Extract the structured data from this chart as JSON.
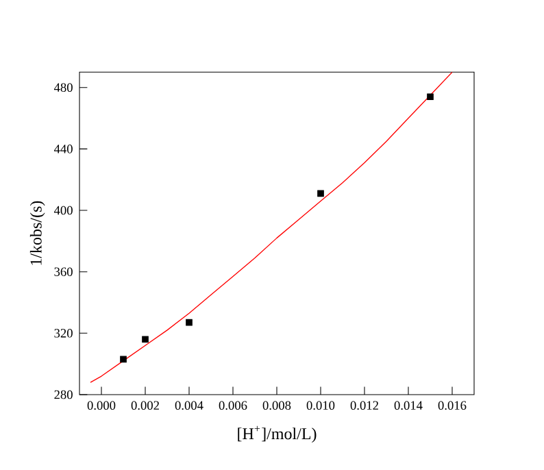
{
  "chart_data": {
    "type": "scatter",
    "xlabel": "[H$^{+}$]/mol/L)",
    "ylabel": "1/kobs/(s)",
    "xlim": [
      -0.001,
      0.017
    ],
    "ylim": [
      280,
      490
    ],
    "xticks": [
      {
        "value": 0,
        "label": "0.000"
      },
      {
        "value": 0.002,
        "label": "0.002"
      },
      {
        "value": 0.004,
        "label": "0.004"
      },
      {
        "value": 0.006,
        "label": "0.006"
      },
      {
        "value": 0.008,
        "label": "0.008"
      },
      {
        "value": 0.01,
        "label": "0.010"
      },
      {
        "value": 0.012,
        "label": "0.012"
      },
      {
        "value": 0.014,
        "label": "0.014"
      },
      {
        "value": 0.016,
        "label": "0.016"
      }
    ],
    "yticks": [
      280,
      320,
      360,
      400,
      440,
      480
    ],
    "grid": false,
    "series": [
      {
        "color": "#000000",
        "marker": "square",
        "x": [
          0.001,
          0.002,
          0.004,
          0.01,
          0.015
        ],
        "values": [
          303,
          316,
          327,
          411,
          474
        ]
      },
      {
        "type": "line",
        "color": "#ff0000",
        "line_style": "solid",
        "x": [
          -0.0005,
          0,
          0.001,
          0.002,
          0.003,
          0.004,
          0.005,
          0.006,
          0.007,
          0.008,
          0.009,
          0.01,
          0.011,
          0.012,
          0.013,
          0.014,
          0.015,
          0.016
        ],
        "values": [
          288,
          292,
          302,
          312,
          322,
          333,
          345,
          357,
          369,
          382,
          394,
          406,
          418,
          431,
          445,
          460,
          475,
          490
        ]
      }
    ]
  }
}
